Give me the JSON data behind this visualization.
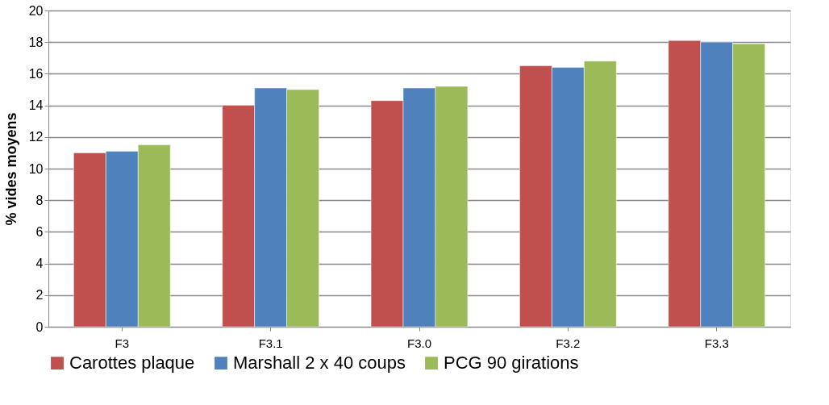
{
  "chart_data": {
    "type": "bar",
    "ylabel": "% vides moyens",
    "categories": [
      "F3",
      "F3.1",
      "F3.0",
      "F3.2",
      "F3.3"
    ],
    "series": [
      {
        "name": "Carottes plaque",
        "color": "#c0504d",
        "values": [
          11.0,
          14.0,
          14.3,
          16.5,
          18.1
        ]
      },
      {
        "name": "Marshall 2 x 40 coups",
        "color": "#4f81bd",
        "values": [
          11.1,
          15.1,
          15.1,
          16.4,
          18.0
        ]
      },
      {
        "name": "PCG 90 girations",
        "color": "#9bbb59",
        "values": [
          11.5,
          15.0,
          15.2,
          16.8,
          17.9
        ]
      }
    ],
    "ylim": [
      0,
      20
    ],
    "yticks": [
      0,
      2,
      4,
      6,
      8,
      10,
      12,
      14,
      16,
      18,
      20
    ],
    "grid": "y",
    "legend": "bottom"
  }
}
